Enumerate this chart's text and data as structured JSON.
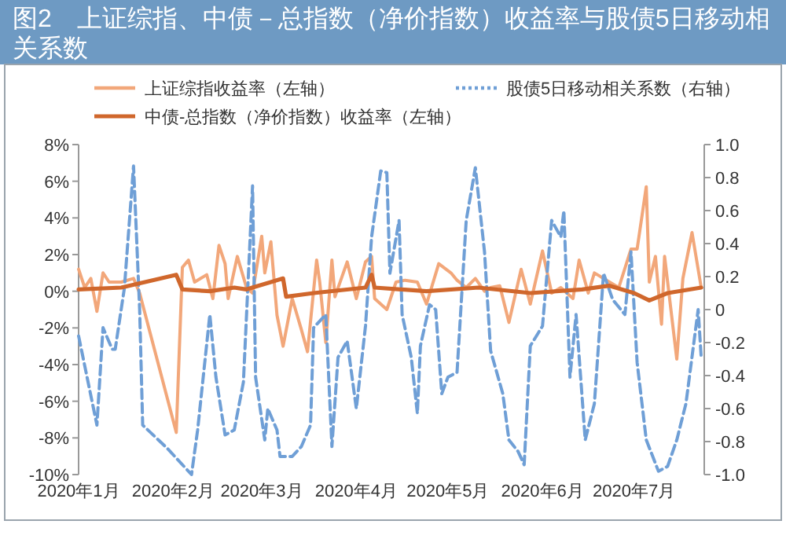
{
  "chart_data": {
    "type": "line",
    "title": "图2　上证综指、中债－总指数（净价指数）收益率与股债5日移动相关系数",
    "xlim": [
      "2020-01-01",
      "2020-07-24"
    ],
    "xticks": [
      {
        "value": "2020-01-01",
        "label": "2020年1月"
      },
      {
        "value": "2020-02-01",
        "label": "2020年2月"
      },
      {
        "value": "2020-03-01",
        "label": "2020年3月"
      },
      {
        "value": "2020-04-01",
        "label": "2020年4月"
      },
      {
        "value": "2020-05-01",
        "label": "2020年5月"
      },
      {
        "value": "2020-06-01",
        "label": "2020年6月"
      },
      {
        "value": "2020-07-01",
        "label": "2020年7月"
      }
    ],
    "ylim": [
      -10,
      8
    ],
    "yticks": [
      {
        "value": -10,
        "label": "-10%"
      },
      {
        "value": -8,
        "label": "-8%"
      },
      {
        "value": -6,
        "label": "-6%"
      },
      {
        "value": -4,
        "label": "-4%"
      },
      {
        "value": -2,
        "label": "-2%"
      },
      {
        "value": 0,
        "label": "0%"
      },
      {
        "value": 2,
        "label": "2%"
      },
      {
        "value": 4,
        "label": "4%"
      },
      {
        "value": 6,
        "label": "6%"
      },
      {
        "value": 8,
        "label": "8%"
      }
    ],
    "y2lim": [
      -1,
      1
    ],
    "y2ticks": [
      {
        "value": -1,
        "label": "-1.0"
      },
      {
        "value": -0.8,
        "label": "-0.8"
      },
      {
        "value": -0.6,
        "label": "-0.6"
      },
      {
        "value": -0.4,
        "label": "-0.4"
      },
      {
        "value": -0.2,
        "label": "-0.2"
      },
      0,
      0.2,
      0.4,
      0.6,
      0.8,
      {
        "value": 1,
        "label": "1.0"
      }
    ],
    "grid": false,
    "legend": "top",
    "marker": "none",
    "series": [
      {
        "name": "上证综指收益率（左轴）",
        "color": "#f2a77a",
        "line_style": "solid",
        "x": [
          "2020-01-01",
          "2020-01-03",
          "2020-01-05",
          "2020-01-07",
          "2020-01-09",
          "2020-01-11",
          "2020-01-15",
          "2020-01-19",
          "2020-01-21",
          "2020-02-02",
          "2020-02-04",
          "2020-02-06",
          "2020-02-08",
          "2020-02-12",
          "2020-02-14",
          "2020-02-16",
          "2020-02-18",
          "2020-02-19",
          "2020-02-22",
          "2020-02-25",
          "2020-02-27",
          "2020-03-01",
          "2020-03-02",
          "2020-03-04",
          "2020-03-06",
          "2020-03-08",
          "2020-03-11",
          "2020-03-14",
          "2020-03-16",
          "2020-03-19",
          "2020-03-20",
          "2020-03-22",
          "2020-03-24",
          "2020-03-25",
          "2020-03-29",
          "2020-04-01",
          "2020-04-04",
          "2020-04-06",
          "2020-04-07",
          "2020-04-11",
          "2020-04-14",
          "2020-04-17",
          "2020-04-21",
          "2020-04-24",
          "2020-04-28",
          "2020-05-02",
          "2020-05-04",
          "2020-05-07",
          "2020-05-10",
          "2020-05-13",
          "2020-05-15",
          "2020-05-18",
          "2020-05-21",
          "2020-05-25",
          "2020-05-28",
          "2020-06-01",
          "2020-06-04",
          "2020-06-07",
          "2020-06-11",
          "2020-06-13",
          "2020-06-16",
          "2020-06-18",
          "2020-06-21",
          "2020-06-26",
          "2020-06-30",
          "2020-07-02",
          "2020-07-05",
          "2020-07-06",
          "2020-07-08",
          "2020-07-10",
          "2020-07-11",
          "2020-07-15",
          "2020-07-17",
          "2020-07-20",
          "2020-07-23"
        ],
        "values": [
          1.2,
          0.2,
          0.7,
          -1.1,
          1.0,
          0.5,
          0.5,
          0.7,
          -0.1,
          -7.7,
          1.3,
          1.7,
          0.5,
          0.9,
          -0.4,
          2.5,
          1.5,
          -0.4,
          1.9,
          0.2,
          -0.1,
          3.0,
          1.0,
          2.7,
          -1.3,
          -3.0,
          -0.4,
          -2.1,
          -3.3,
          1.7,
          0.5,
          -2.8,
          1.7,
          -0.3,
          1.6,
          -0.4,
          1.6,
          1.9,
          -0.4,
          -1.0,
          0.5,
          0.6,
          0.5,
          -0.7,
          1.5,
          1.0,
          0.6,
          0.2,
          0.7,
          0.0,
          0.2,
          0.3,
          -1.7,
          1.2,
          -0.7,
          2.2,
          -0.1,
          0.2,
          -0.4,
          1.7,
          -0.1,
          1.0,
          0.7,
          0.2,
          2.3,
          2.3,
          5.7,
          0.5,
          1.9,
          -1.8,
          1.9,
          -3.7,
          0.7,
          3.2,
          0.2
        ]
      },
      {
        "name": "股债5日移动相关系数（右轴）",
        "color": "#6f9fd6",
        "line_style": "dashed",
        "axis": "y2",
        "x": [
          "2020-01-01",
          "2020-01-07",
          "2020-01-09",
          "2020-01-12",
          "2020-01-13",
          "2020-01-16",
          "2020-01-19",
          "2020-01-21",
          "2020-01-22",
          "2020-01-30",
          "2020-02-07",
          "2020-02-09",
          "2020-02-13",
          "2020-02-15",
          "2020-02-18",
          "2020-02-21",
          "2020-02-24",
          "2020-02-27",
          "2020-02-28",
          "2020-03-02",
          "2020-03-03",
          "2020-03-06",
          "2020-03-07",
          "2020-03-11",
          "2020-03-14",
          "2020-03-17",
          "2020-03-18",
          "2020-03-22",
          "2020-03-24",
          "2020-03-26",
          "2020-03-29",
          "2020-04-01",
          "2020-04-04",
          "2020-04-06",
          "2020-04-09",
          "2020-04-11",
          "2020-04-12",
          "2020-04-15",
          "2020-04-16",
          "2020-04-19",
          "2020-04-21",
          "2020-04-22",
          "2020-04-25",
          "2020-04-27",
          "2020-04-29",
          "2020-05-01",
          "2020-05-04",
          "2020-05-07",
          "2020-05-10",
          "2020-05-13",
          "2020-05-15",
          "2020-05-19",
          "2020-05-21",
          "2020-05-24",
          "2020-05-26",
          "2020-05-28",
          "2020-06-01",
          "2020-06-04",
          "2020-06-07",
          "2020-06-08",
          "2020-06-10",
          "2020-06-12",
          "2020-06-15",
          "2020-06-18",
          "2020-06-21",
          "2020-06-24",
          "2020-06-28",
          "2020-06-30",
          "2020-07-02",
          "2020-07-05",
          "2020-07-09",
          "2020-07-12",
          "2020-07-15",
          "2020-07-18",
          "2020-07-22",
          "2020-07-23"
        ],
        "values": [
          -0.16,
          -0.7,
          -0.11,
          -0.24,
          -0.24,
          0.13,
          0.87,
          0.0,
          -0.7,
          -0.84,
          -1.0,
          -0.73,
          -0.03,
          -0.41,
          -0.76,
          -0.73,
          -0.44,
          0.75,
          -0.41,
          -0.79,
          -0.6,
          -0.73,
          -0.89,
          -0.89,
          -0.83,
          -0.7,
          -0.11,
          -0.03,
          -0.83,
          -0.29,
          -0.19,
          -0.6,
          -0.1,
          0.44,
          0.84,
          0.83,
          0.22,
          0.54,
          -0.03,
          -0.29,
          -0.63,
          -0.22,
          0.03,
          0.0,
          -0.51,
          -0.41,
          -0.38,
          0.54,
          0.86,
          0.35,
          -0.25,
          -0.51,
          -0.79,
          -0.86,
          -0.94,
          -0.22,
          -0.1,
          0.54,
          0.44,
          0.6,
          -0.41,
          -0.03,
          -0.79,
          -0.57,
          0.22,
          0.06,
          -0.03,
          0.35,
          -0.32,
          -0.79,
          -0.98,
          -0.95,
          -0.79,
          -0.57,
          0.0,
          -0.29
        ]
      },
      {
        "name": "中债-总指数（净价指数）收益率（左轴）",
        "color": "#d0672c",
        "line_style": "solid",
        "x": [
          "2020-01-01",
          "2020-01-15",
          "2020-02-02",
          "2020-02-04",
          "2020-02-13",
          "2020-02-21",
          "2020-02-25",
          "2020-03-04",
          "2020-03-08",
          "2020-03-09",
          "2020-03-18",
          "2020-04-04",
          "2020-04-06",
          "2020-04-07",
          "2020-04-24",
          "2020-05-11",
          "2020-05-28",
          "2020-06-14",
          "2020-06-23",
          "2020-07-01",
          "2020-07-06",
          "2020-07-12",
          "2020-07-23"
        ],
        "values": [
          0.1,
          0.2,
          0.9,
          0.1,
          0.0,
          0.2,
          0.1,
          0.5,
          0.7,
          -0.3,
          -0.1,
          0.2,
          0.9,
          0.2,
          0.0,
          0.2,
          -0.1,
          0.1,
          0.3,
          -0.1,
          -0.5,
          -0.1,
          0.2
        ]
      }
    ]
  }
}
